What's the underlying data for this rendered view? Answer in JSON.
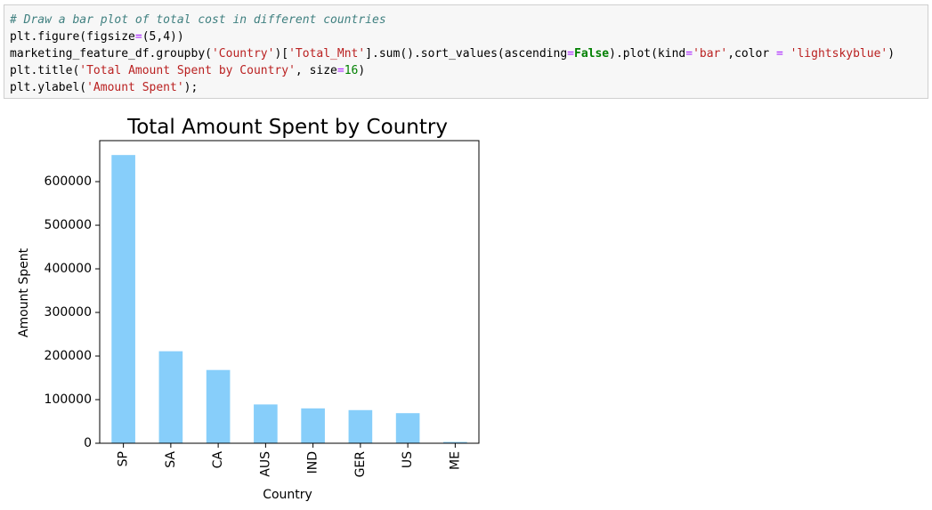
{
  "code": {
    "line1": "# Draw a bar plot of total cost in different countries",
    "line2": {
      "a": "plt.figure(figsize",
      "eq": "=",
      "b": "(5,4))"
    },
    "line3": {
      "a": "marketing_feature_df.groupby(",
      "s1": "'Country'",
      "b": ")[",
      "s2": "'Total_Mnt'",
      "c": "].sum().sort_values(ascending",
      "eq": "=",
      "kw": "False",
      "d": ").plot(kind",
      "eq2": "=",
      "s3": "'bar'",
      "e": ",color ",
      "eq3": "=",
      "f": " ",
      "s4": "'lightskyblue'",
      "g": ")"
    },
    "line4": {
      "a": "plt.title(",
      "s1": "'Total Amount Spent by Country'",
      "b": ", size",
      "eq": "=",
      "n": "16",
      "c": ")"
    },
    "line5": {
      "a": "plt.ylabel(",
      "s1": "'Amount Spent'",
      "b": ");"
    }
  },
  "chart_data": {
    "type": "bar",
    "title": "Total Amount Spent by Country",
    "xlabel": "Country",
    "ylabel": "Amount Spent",
    "categories": [
      "SP",
      "SA",
      "CA",
      "AUS",
      "IND",
      "GER",
      "US",
      "ME"
    ],
    "values": [
      661000,
      211000,
      168000,
      89000,
      80000,
      76000,
      69000,
      3000
    ],
    "yticks": [
      0,
      100000,
      200000,
      300000,
      400000,
      500000,
      600000
    ],
    "ytick_labels": [
      "0",
      "100000",
      "200000",
      "300000",
      "400000",
      "500000",
      "600000"
    ],
    "ylim": [
      0,
      694000
    ],
    "color": "#87cefa",
    "grid": false
  }
}
